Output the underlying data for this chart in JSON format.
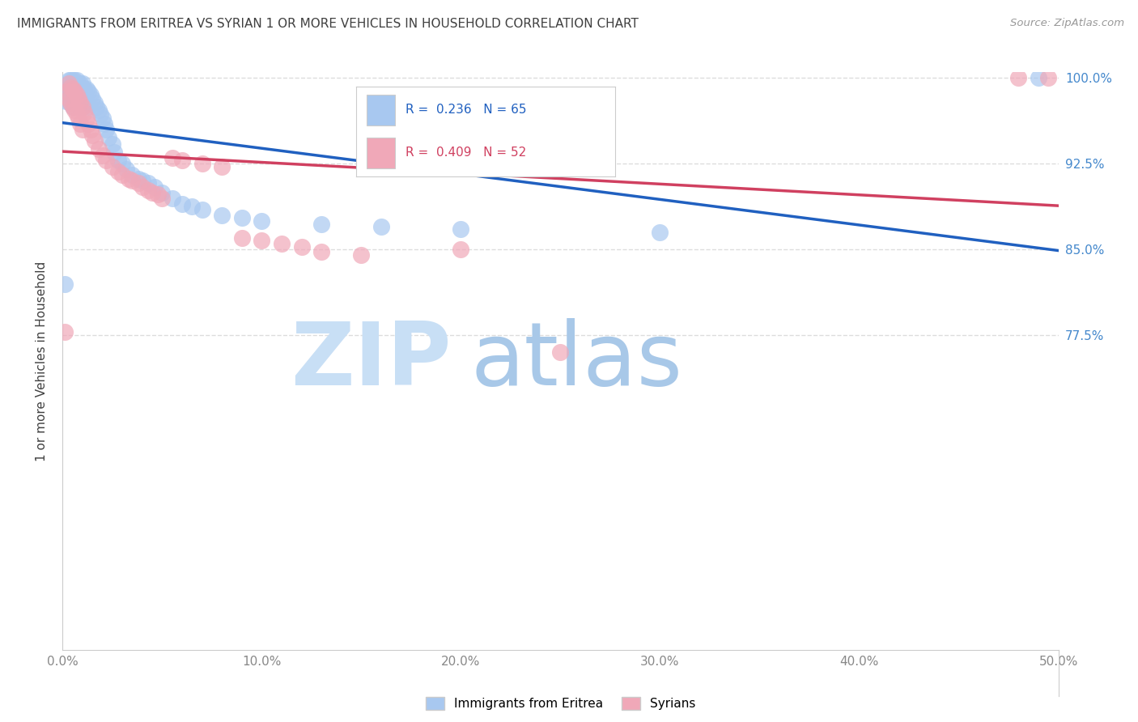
{
  "title": "IMMIGRANTS FROM ERITREA VS SYRIAN 1 OR MORE VEHICLES IN HOUSEHOLD CORRELATION CHART",
  "source": "Source: ZipAtlas.com",
  "ylabel": "1 or more Vehicles in Household",
  "xlim": [
    0.0,
    0.5
  ],
  "ylim": [
    0.5,
    1.005
  ],
  "xtick_labels": [
    "0.0%",
    "10.0%",
    "20.0%",
    "30.0%",
    "40.0%",
    "50.0%"
  ],
  "xtick_values": [
    0.0,
    0.1,
    0.2,
    0.3,
    0.4,
    0.5
  ],
  "ytick_labels": [
    "77.5%",
    "85.0%",
    "92.5%",
    "100.0%"
  ],
  "ytick_values": [
    0.775,
    0.85,
    0.925,
    1.0
  ],
  "blue_marker_color": "#a8c8f0",
  "pink_marker_color": "#f0a8b8",
  "blue_line_color": "#2060c0",
  "pink_line_color": "#d04060",
  "blue_text_color": "#2060c0",
  "pink_text_color": "#d04060",
  "right_tick_color": "#4488cc",
  "watermark_text": "ZIPatlas",
  "watermark_color": "#daeaf8",
  "title_color": "#404040",
  "grid_color": "#dddddd",
  "background_color": "#ffffff",
  "legend_label_blue": "Immigrants from Eritrea",
  "legend_label_pink": "Syrians",
  "R_blue": 0.236,
  "N_blue": 65,
  "R_pink": 0.409,
  "N_pink": 52,
  "eritrea_x": [
    0.001,
    0.002,
    0.002,
    0.003,
    0.003,
    0.003,
    0.004,
    0.004,
    0.004,
    0.005,
    0.005,
    0.005,
    0.006,
    0.006,
    0.006,
    0.007,
    0.007,
    0.007,
    0.008,
    0.008,
    0.009,
    0.009,
    0.009,
    0.01,
    0.01,
    0.01,
    0.011,
    0.011,
    0.012,
    0.012,
    0.013,
    0.013,
    0.014,
    0.015,
    0.016,
    0.017,
    0.018,
    0.019,
    0.02,
    0.021,
    0.022,
    0.023,
    0.025,
    0.026,
    0.028,
    0.03,
    0.032,
    0.035,
    0.038,
    0.04,
    0.043,
    0.046,
    0.05,
    0.055,
    0.06,
    0.065,
    0.07,
    0.08,
    0.09,
    0.1,
    0.13,
    0.16,
    0.2,
    0.3,
    0.49
  ],
  "eritrea_y": [
    0.82,
    0.99,
    0.98,
    0.998,
    0.992,
    0.985,
    0.998,
    0.99,
    0.978,
    0.998,
    0.99,
    0.975,
    0.998,
    0.992,
    0.978,
    0.998,
    0.99,
    0.978,
    0.995,
    0.985,
    0.995,
    0.985,
    0.975,
    0.995,
    0.985,
    0.975,
    0.99,
    0.978,
    0.99,
    0.978,
    0.988,
    0.975,
    0.985,
    0.982,
    0.978,
    0.975,
    0.972,
    0.968,
    0.965,
    0.96,
    0.955,
    0.948,
    0.942,
    0.935,
    0.928,
    0.925,
    0.92,
    0.915,
    0.912,
    0.91,
    0.908,
    0.905,
    0.9,
    0.895,
    0.89,
    0.888,
    0.885,
    0.88,
    0.878,
    0.875,
    0.872,
    0.87,
    0.868,
    0.865,
    1.0
  ],
  "syrian_x": [
    0.001,
    0.002,
    0.003,
    0.003,
    0.004,
    0.004,
    0.005,
    0.005,
    0.006,
    0.006,
    0.007,
    0.007,
    0.008,
    0.008,
    0.009,
    0.009,
    0.01,
    0.01,
    0.011,
    0.012,
    0.013,
    0.014,
    0.015,
    0.016,
    0.018,
    0.02,
    0.022,
    0.025,
    0.028,
    0.03,
    0.033,
    0.035,
    0.038,
    0.04,
    0.043,
    0.045,
    0.048,
    0.05,
    0.055,
    0.06,
    0.07,
    0.08,
    0.09,
    0.1,
    0.11,
    0.12,
    0.13,
    0.15,
    0.2,
    0.25,
    0.48,
    0.495
  ],
  "syrian_y": [
    0.778,
    0.988,
    0.995,
    0.982,
    0.992,
    0.978,
    0.99,
    0.975,
    0.988,
    0.972,
    0.985,
    0.968,
    0.982,
    0.965,
    0.978,
    0.96,
    0.975,
    0.955,
    0.97,
    0.965,
    0.96,
    0.955,
    0.95,
    0.945,
    0.938,
    0.932,
    0.928,
    0.922,
    0.918,
    0.915,
    0.912,
    0.91,
    0.908,
    0.905,
    0.902,
    0.9,
    0.898,
    0.895,
    0.93,
    0.928,
    0.925,
    0.922,
    0.86,
    0.858,
    0.855,
    0.852,
    0.848,
    0.845,
    0.85,
    0.76,
    1.0,
    1.0
  ]
}
